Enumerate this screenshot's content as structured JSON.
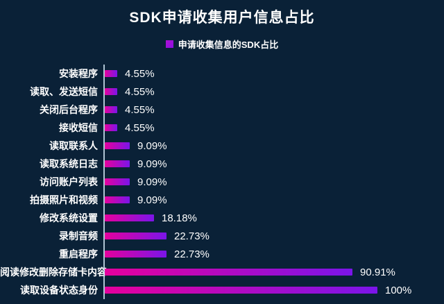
{
  "title": "SDK申请收集用户信息占比",
  "legend": {
    "label": "申请收集信息的SDK占比",
    "swatch_color": "#ae10d4"
  },
  "colors": {
    "background": "#0a2137",
    "text": "#ffffff",
    "bar_gradient_start": "#e5009d",
    "bar_gradient_end": "#7b15e9",
    "axis_line": "#cde0ee"
  },
  "chart_data": {
    "type": "bar",
    "orientation": "horizontal",
    "title": "SDK申请收集用户信息占比",
    "legend_entries": [
      "申请收集信息的SDK占比"
    ],
    "legend_position": "top-center",
    "grid": false,
    "xlim": [
      0,
      100
    ],
    "categories": [
      "安装程序",
      "读取、发送短信",
      "关闭后台程序",
      "接收短信",
      "读取联系人",
      "读取系统日志",
      "访问账户列表",
      "拍摄照片和视频",
      "修改系统设置",
      "录制音频",
      "重启程序",
      "阅读修改删除存储卡内容",
      "读取设备状态身份"
    ],
    "values": [
      4.55,
      4.55,
      4.55,
      4.55,
      9.09,
      9.09,
      9.09,
      9.09,
      18.18,
      22.73,
      22.73,
      90.91,
      100
    ],
    "value_labels": [
      "4.55%",
      "4.55%",
      "4.55%",
      "4.55%",
      "9.09%",
      "9.09%",
      "9.09%",
      "9.09%",
      "18.18%",
      "22.73%",
      "22.73%",
      "90.91%",
      "100%"
    ]
  }
}
